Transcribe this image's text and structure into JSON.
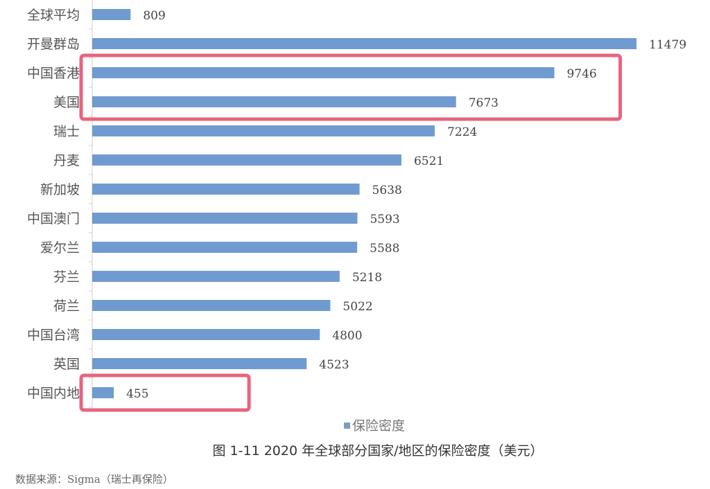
{
  "chart_data": {
    "type": "bar",
    "orientation": "horizontal",
    "categories": [
      "全球平均",
      "开曼群岛",
      "中国香港",
      "美国",
      "瑞士",
      "丹麦",
      "新加坡",
      "中国澳门",
      "爱尔兰",
      "芬兰",
      "荷兰",
      "中国台湾",
      "英国",
      "中国内地"
    ],
    "series": [
      {
        "name": "保险密度",
        "values": [
          809,
          11479,
          9746,
          7673,
          7224,
          6521,
          5638,
          5593,
          5588,
          5218,
          5022,
          4800,
          4523,
          455
        ]
      }
    ],
    "title": "图 1-11 2020 年全球部分国家/地区的保险密度（美元）",
    "xlabel": "",
    "ylabel": "",
    "xlim": [
      0,
      11479
    ],
    "grid": false,
    "legend": "bottom",
    "data_labels": true,
    "bar_color": "#6f9bd0",
    "highlight_color": "#e8647e",
    "highlighted_groups": [
      [
        "中国香港",
        "美国"
      ],
      [
        "中国内地"
      ]
    ]
  },
  "source": "数据来源：Sigma（瑞士再保险）"
}
